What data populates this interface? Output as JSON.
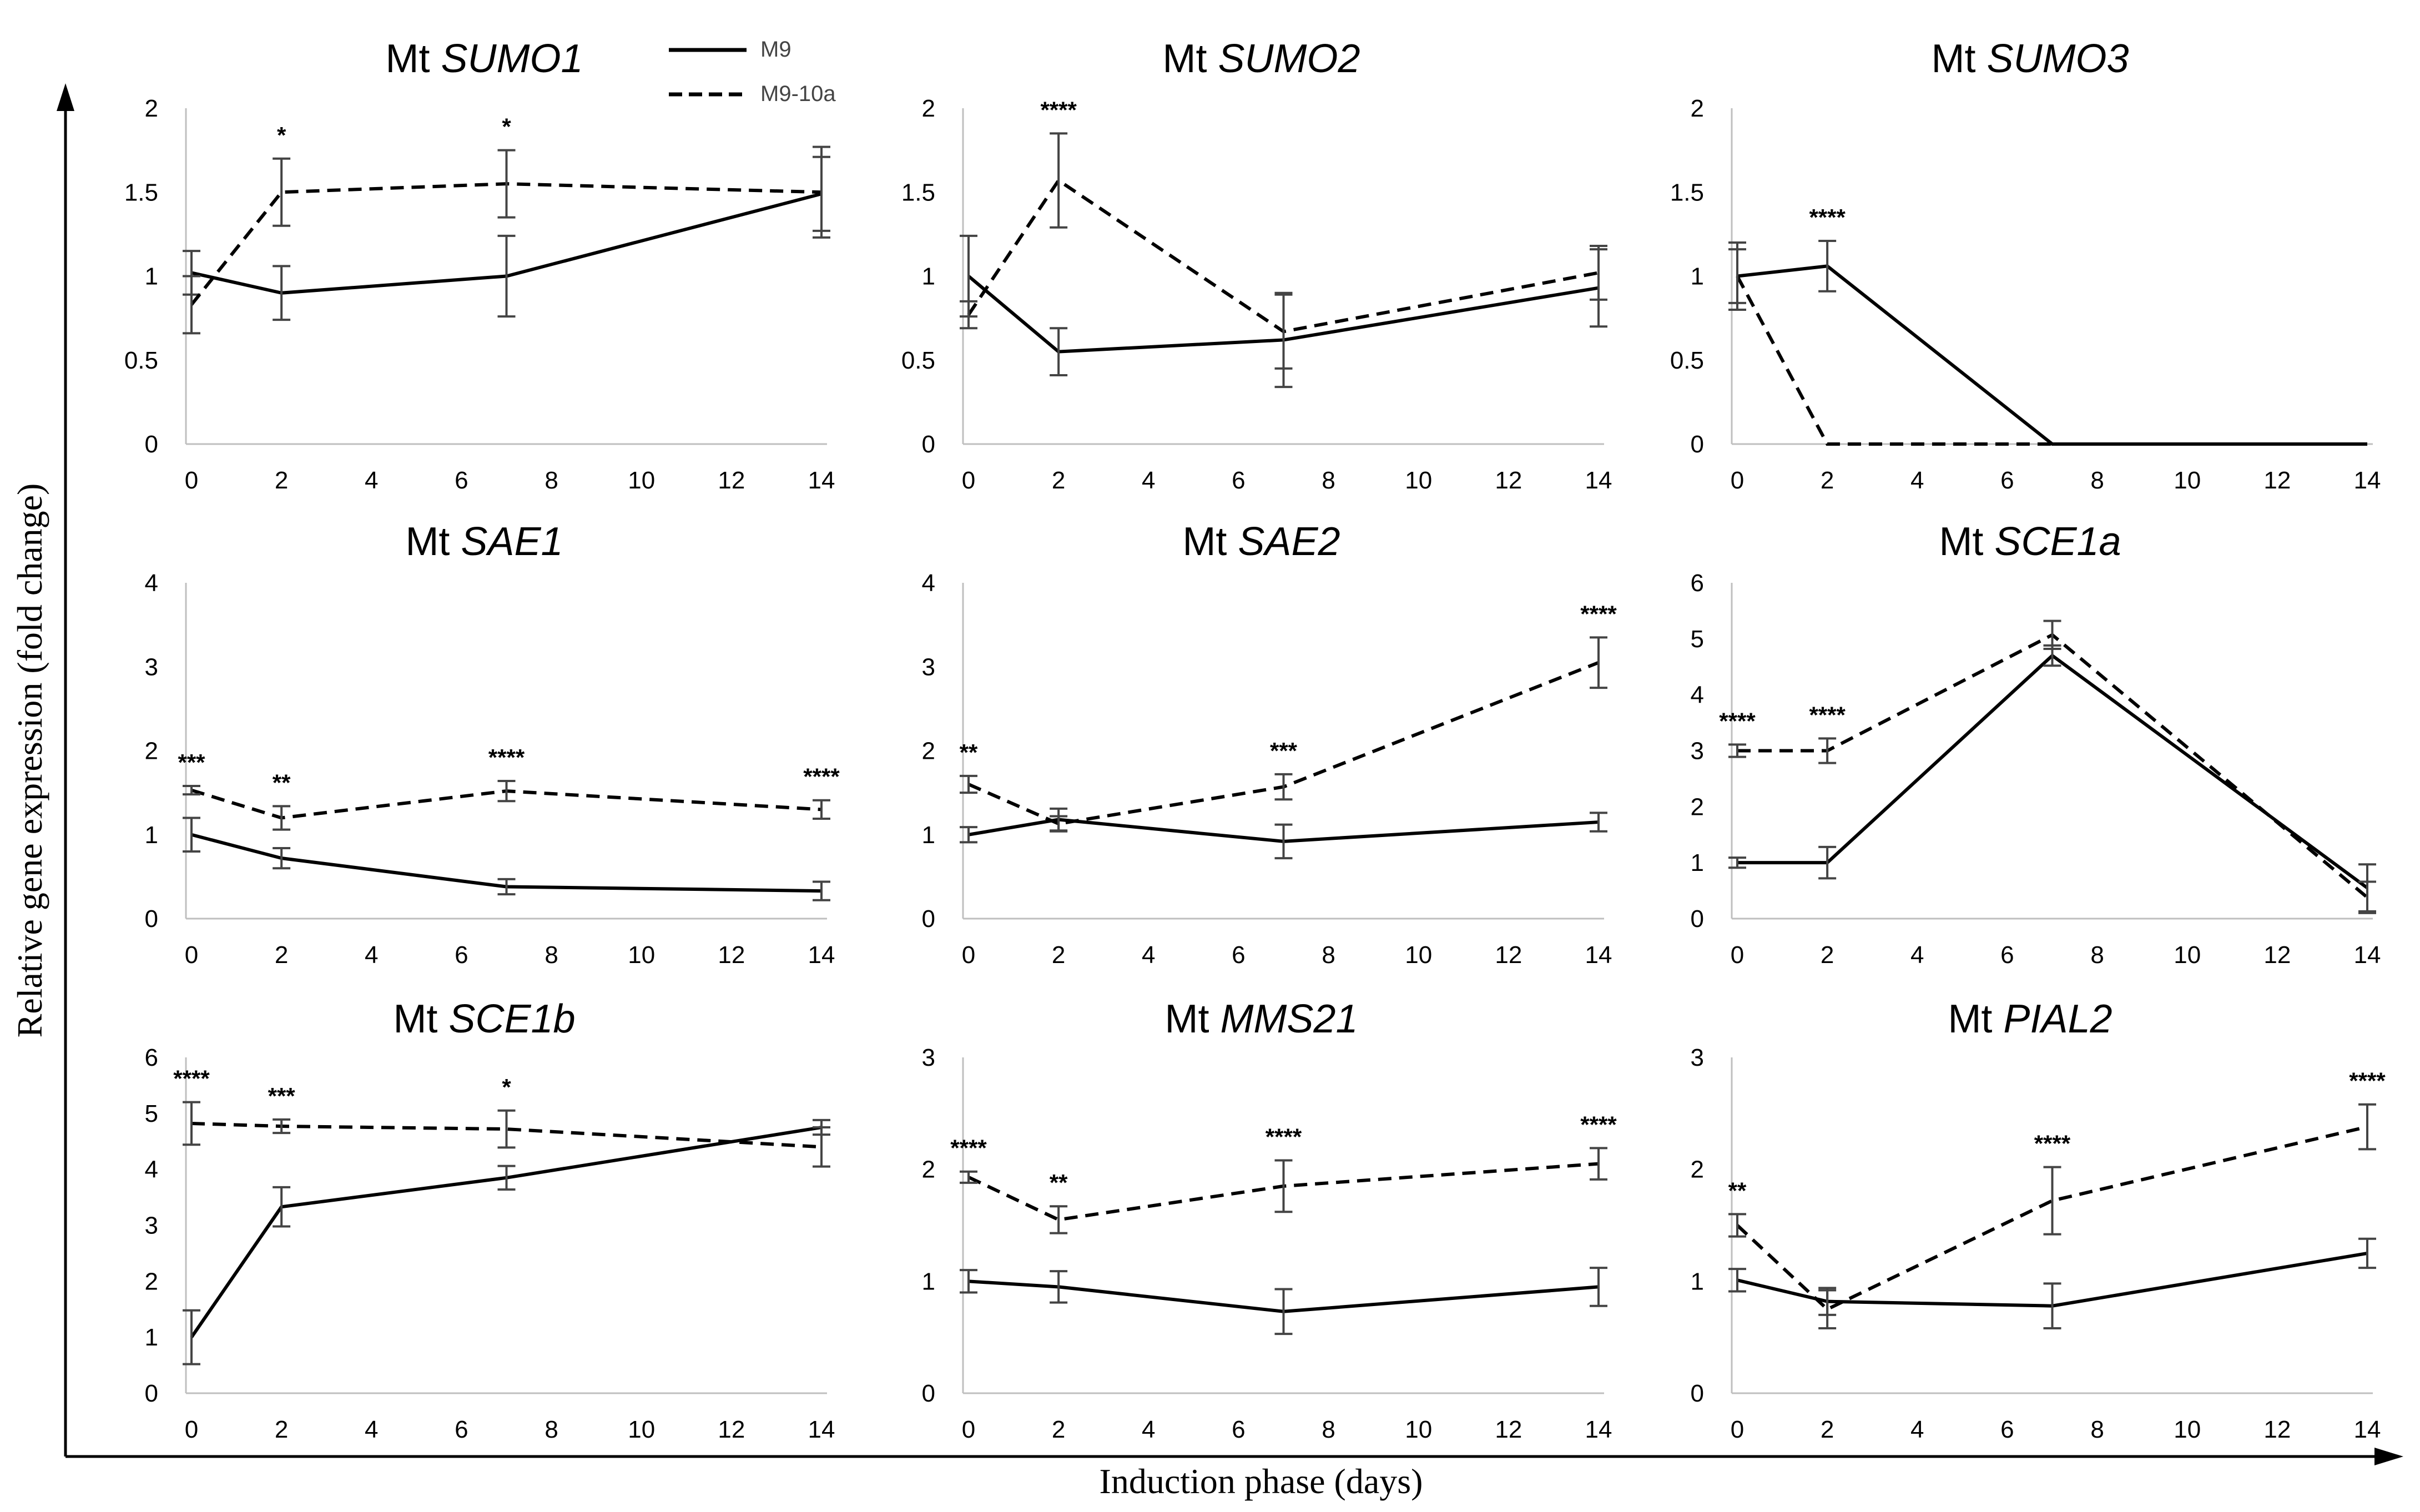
{
  "figure": {
    "ylabel": "Relative gene expression (fold change)",
    "xlabel": "Induction phase (days)"
  },
  "legend": [
    {
      "name": "M9",
      "style": "solid"
    },
    {
      "name": "M9-10a",
      "style": "dashed"
    }
  ],
  "chart_data": [
    {
      "type": "line",
      "title_prefix": "Mt ",
      "gene": "SUMO1",
      "x": [
        0,
        2,
        7,
        14
      ],
      "xticks": [
        0,
        2,
        4,
        6,
        8,
        10,
        12,
        14
      ],
      "xlim": [
        0,
        14
      ],
      "yticks": [
        0,
        0.5,
        1,
        1.5,
        2
      ],
      "ylim": [
        0,
        2
      ],
      "series": [
        {
          "name": "M9",
          "values": [
            1.02,
            0.9,
            1.0,
            1.49
          ],
          "errors": [
            0.13,
            0.16,
            0.24,
            0.22
          ]
        },
        {
          "name": "M9-10a",
          "values": [
            0.83,
            1.5,
            1.55,
            1.5
          ],
          "errors": [
            0.17,
            0.2,
            0.2,
            0.27
          ]
        }
      ],
      "significance": [
        "",
        "*",
        "*",
        ""
      ]
    },
    {
      "type": "line",
      "title_prefix": "Mt ",
      "gene": "SUMO2",
      "x": [
        0,
        2,
        7,
        14
      ],
      "xticks": [
        0,
        2,
        4,
        6,
        8,
        10,
        12,
        14
      ],
      "xlim": [
        0,
        14
      ],
      "yticks": [
        0,
        0.5,
        1,
        1.5,
        2
      ],
      "ylim": [
        0,
        2
      ],
      "series": [
        {
          "name": "M9",
          "values": [
            1.0,
            0.55,
            0.62,
            0.93
          ],
          "errors": [
            0.24,
            0.14,
            0.28,
            0.23
          ]
        },
        {
          "name": "M9-10a",
          "values": [
            0.77,
            1.57,
            0.67,
            1.02
          ],
          "errors": [
            0.08,
            0.28,
            0.22,
            0.16
          ]
        }
      ],
      "significance": [
        "",
        "****",
        "",
        ""
      ]
    },
    {
      "type": "line",
      "title_prefix": "Mt ",
      "gene": "SUMO3",
      "x": [
        0,
        2,
        7,
        14
      ],
      "xticks": [
        0,
        2,
        4,
        6,
        8,
        10,
        12,
        14
      ],
      "xlim": [
        0,
        14
      ],
      "yticks": [
        0,
        0.5,
        1,
        1.5,
        2
      ],
      "ylim": [
        0,
        2
      ],
      "series": [
        {
          "name": "M9",
          "values": [
            1.0,
            1.06,
            0.0,
            0.0
          ],
          "errors": [
            0.2,
            0.15,
            0,
            0
          ]
        },
        {
          "name": "M9-10a",
          "values": [
            1.0,
            0.0,
            0.0,
            0.0
          ],
          "errors": [
            0.16,
            0,
            0,
            0
          ]
        }
      ],
      "significance": [
        "",
        "****",
        "",
        ""
      ]
    },
    {
      "type": "line",
      "title_prefix": "Mt ",
      "gene": "SAE1",
      "x": [
        0,
        2,
        7,
        14
      ],
      "xticks": [
        0,
        2,
        4,
        6,
        8,
        10,
        12,
        14
      ],
      "xlim": [
        0,
        14
      ],
      "yticks": [
        0,
        1,
        2,
        3,
        4
      ],
      "ylim": [
        0,
        4
      ],
      "series": [
        {
          "name": "M9",
          "values": [
            1.0,
            0.72,
            0.38,
            0.33
          ],
          "errors": [
            0.2,
            0.12,
            0.09,
            0.11
          ]
        },
        {
          "name": "M9-10a",
          "values": [
            1.53,
            1.2,
            1.52,
            1.3
          ],
          "errors": [
            0.05,
            0.14,
            0.12,
            0.11
          ]
        }
      ],
      "significance": [
        "***",
        "**",
        "****",
        "****"
      ]
    },
    {
      "type": "line",
      "title_prefix": "Mt ",
      "gene": "SAE2",
      "x": [
        0,
        2,
        7,
        14
      ],
      "xticks": [
        0,
        2,
        4,
        6,
        8,
        10,
        12,
        14
      ],
      "xlim": [
        0,
        14
      ],
      "yticks": [
        0,
        1,
        2,
        3,
        4
      ],
      "ylim": [
        0,
        4
      ],
      "series": [
        {
          "name": "M9",
          "values": [
            1.0,
            1.18,
            0.92,
            1.15
          ],
          "errors": [
            0.09,
            0.13,
            0.2,
            0.11
          ]
        },
        {
          "name": "M9-10a",
          "values": [
            1.6,
            1.13,
            1.57,
            3.05
          ],
          "errors": [
            0.1,
            0.09,
            0.15,
            0.3
          ]
        }
      ],
      "significance": [
        "**",
        "",
        "***",
        "****"
      ]
    },
    {
      "type": "line",
      "title_prefix": "Mt ",
      "gene": "SCE1a",
      "x": [
        0,
        2,
        7,
        14
      ],
      "xticks": [
        0,
        2,
        4,
        6,
        8,
        10,
        12,
        14
      ],
      "xlim": [
        0,
        14
      ],
      "yticks": [
        0,
        1,
        2,
        3,
        4,
        5,
        6
      ],
      "ylim": [
        0,
        6
      ],
      "series": [
        {
          "name": "M9",
          "values": [
            1.0,
            1.0,
            4.7,
            0.55
          ],
          "errors": [
            0.09,
            0.28,
            0.18,
            0.42
          ]
        },
        {
          "name": "M9-10a",
          "values": [
            3.0,
            3.0,
            5.07,
            0.38
          ],
          "errors": [
            0.11,
            0.22,
            0.25,
            0.28
          ]
        }
      ],
      "significance": [
        "****",
        "****",
        "",
        ""
      ]
    },
    {
      "type": "line",
      "title_prefix": "Mt ",
      "gene": "SCE1b",
      "x": [
        0,
        2,
        7,
        14
      ],
      "xticks": [
        0,
        2,
        4,
        6,
        8,
        10,
        12,
        14
      ],
      "xlim": [
        0,
        14
      ],
      "yticks": [
        0,
        1,
        2,
        3,
        4,
        5,
        6
      ],
      "ylim": [
        0,
        6
      ],
      "series": [
        {
          "name": "M9",
          "values": [
            1.0,
            3.33,
            3.85,
            4.75
          ],
          "errors": [
            0.48,
            0.35,
            0.21,
            0.13
          ]
        },
        {
          "name": "M9-10a",
          "values": [
            4.82,
            4.77,
            4.72,
            4.4
          ],
          "errors": [
            0.38,
            0.12,
            0.33,
            0.35
          ]
        }
      ],
      "significance": [
        "****",
        "***",
        "*",
        ""
      ]
    },
    {
      "type": "line",
      "title_prefix": "Mt ",
      "gene": "MMS21",
      "x": [
        0,
        2,
        7,
        14
      ],
      "xticks": [
        0,
        2,
        4,
        6,
        8,
        10,
        12,
        14
      ],
      "xlim": [
        0,
        14
      ],
      "yticks": [
        0,
        1,
        2,
        3
      ],
      "ylim": [
        0,
        3
      ],
      "series": [
        {
          "name": "M9",
          "values": [
            1.0,
            0.95,
            0.73,
            0.95
          ],
          "errors": [
            0.1,
            0.14,
            0.2,
            0.17
          ]
        },
        {
          "name": "M9-10a",
          "values": [
            1.93,
            1.55,
            1.85,
            2.05
          ],
          "errors": [
            0.05,
            0.12,
            0.23,
            0.14
          ]
        }
      ],
      "significance": [
        "****",
        "**",
        "****",
        "****"
      ]
    },
    {
      "type": "line",
      "title_prefix": "Mt ",
      "gene": "PIAL2",
      "x": [
        0,
        2,
        7,
        14
      ],
      "xticks": [
        0,
        2,
        4,
        6,
        8,
        10,
        12,
        14
      ],
      "xlim": [
        0,
        14
      ],
      "yticks": [
        0,
        1,
        2,
        3
      ],
      "ylim": [
        0,
        3
      ],
      "series": [
        {
          "name": "M9",
          "values": [
            1.01,
            0.82,
            0.78,
            1.25
          ],
          "errors": [
            0.1,
            0.12,
            0.2,
            0.13
          ]
        },
        {
          "name": "M9-10a",
          "values": [
            1.5,
            0.75,
            1.72,
            2.38
          ],
          "errors": [
            0.1,
            0.17,
            0.3,
            0.2
          ]
        }
      ],
      "significance": [
        "**",
        "",
        "****",
        "****"
      ]
    }
  ]
}
